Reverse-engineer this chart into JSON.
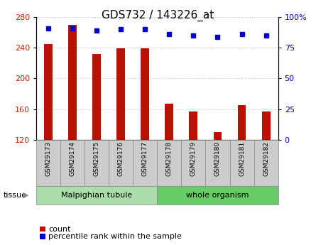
{
  "title": "GDS732 / 143226_at",
  "samples": [
    "GSM29173",
    "GSM29174",
    "GSM29175",
    "GSM29176",
    "GSM29177",
    "GSM29178",
    "GSM29179",
    "GSM29180",
    "GSM29181",
    "GSM29182"
  ],
  "counts": [
    245,
    270,
    232,
    239,
    239,
    167,
    157,
    130,
    165,
    157
  ],
  "percentiles": [
    91,
    91,
    89,
    90,
    90,
    86,
    85,
    84,
    86,
    85
  ],
  "ylim_left": [
    120,
    280
  ],
  "ylim_right": [
    0,
    100
  ],
  "yticks_left": [
    120,
    160,
    200,
    240,
    280
  ],
  "yticks_right": [
    0,
    25,
    50,
    75,
    100
  ],
  "yticklabels_right": [
    "0",
    "25",
    "50",
    "75",
    "100%"
  ],
  "bar_color": "#bb1100",
  "dot_color": "#0000cc",
  "bar_bottom": 120,
  "tissue_groups": [
    {
      "label": "Malpighian tubule",
      "start": 0,
      "end": 5,
      "color": "#aaddaa"
    },
    {
      "label": "whole organism",
      "start": 5,
      "end": 10,
      "color": "#66cc66"
    }
  ],
  "tissue_label": "tissue",
  "legend_items": [
    {
      "label": "count",
      "color": "#bb1100"
    },
    {
      "label": "percentile rank within the sample",
      "color": "#0000cc"
    }
  ],
  "grid_color": "#000000",
  "grid_alpha": 0.25,
  "tick_label_color_left": "#cc2200",
  "tick_label_color_right": "#0000cc",
  "title_fontsize": 11,
  "axis_fontsize": 8,
  "legend_fontsize": 8,
  "sample_box_color": "#cccccc",
  "sample_box_edge": "#888888"
}
